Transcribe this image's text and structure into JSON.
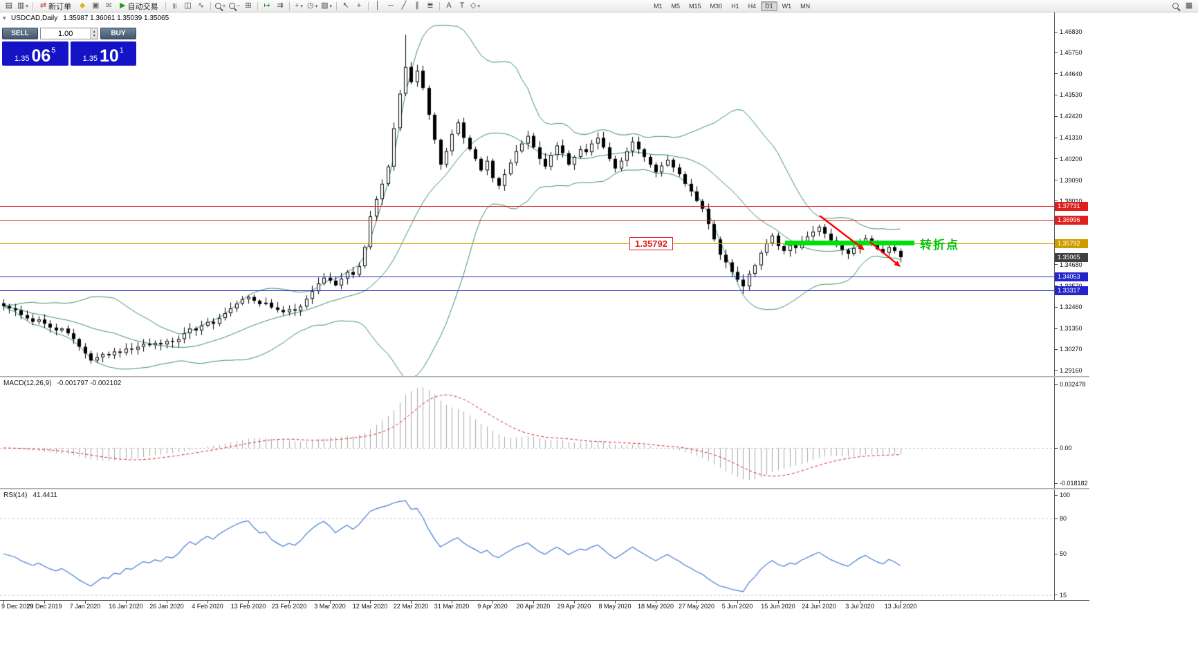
{
  "colors": {
    "band": "#35935a",
    "candle": "#000000",
    "candle_up_fill": "#ffffff",
    "macd_bar": "#a8a8a8",
    "macd_signal": "#e02020",
    "rsi_line": "#4379d8",
    "level_dash": "#c8c8c8",
    "annotation_red": "#ff0000",
    "green_bar": "#00e00e",
    "turning_point_green": "#00c40a",
    "callout_red": "#e01f1f"
  },
  "toolbar": {
    "items": [
      {
        "t": "icon",
        "name": "new-chart-icon",
        "glyph": "▤"
      },
      {
        "t": "icon",
        "name": "profiles-icon",
        "glyph": "▥",
        "dd": true
      },
      {
        "t": "sep"
      },
      {
        "t": "btn",
        "name": "new-order-button",
        "glyph": "⇄",
        "glyph_color": "#c23a3a",
        "label": "新订单"
      },
      {
        "t": "icon",
        "name": "metaeditor-icon",
        "glyph": "◆",
        "color": "#d9b427"
      },
      {
        "t": "icon",
        "name": "terminal-icon",
        "glyph": "▣",
        "color": "#666666"
      },
      {
        "t": "icon",
        "name": "mailbox-icon",
        "glyph": "✉",
        "color": "#777777"
      },
      {
        "t": "btn",
        "name": "autotrading-button",
        "glyph": "▶",
        "glyph_color": "#1fa11f",
        "label": "自动交易"
      },
      {
        "t": "sep"
      },
      {
        "t": "icon",
        "name": "bar-chart-icon",
        "glyph": "|||"
      },
      {
        "t": "icon",
        "name": "candlestick-chart-icon",
        "glyph": "◫"
      },
      {
        "t": "icon",
        "name": "line-chart-icon",
        "glyph": "∿"
      },
      {
        "t": "sep"
      },
      {
        "t": "mag",
        "name": "zoom-in-icon",
        "sign": "+"
      },
      {
        "t": "mag",
        "name": "zoom-out-icon",
        "sign": "−"
      },
      {
        "t": "icon",
        "name": "tile-windows-icon",
        "glyph": "⊞"
      },
      {
        "t": "sep"
      },
      {
        "t": "icon",
        "name": "auto-scroll-icon",
        "glyph": "↦",
        "color": "#2a8a2a"
      },
      {
        "t": "icon",
        "name": "chart-shift-icon",
        "glyph": "⇉"
      },
      {
        "t": "sep"
      },
      {
        "t": "icon",
        "name": "indicators-icon",
        "glyph": "+",
        "color": "#1a9a1a",
        "dd": true
      },
      {
        "t": "icon",
        "name": "periods-icon",
        "glyph": "◷",
        "dd": true
      },
      {
        "t": "icon",
        "name": "templates-icon",
        "glyph": "▨",
        "dd": true
      },
      {
        "t": "sep"
      },
      {
        "t": "icon",
        "name": "cursor-icon",
        "glyph": "↖"
      },
      {
        "t": "icon",
        "name": "crosshair-icon",
        "glyph": "+"
      },
      {
        "t": "sep"
      },
      {
        "t": "icon",
        "name": "vertical-line-icon",
        "glyph": "│"
      },
      {
        "t": "icon",
        "name": "horizontal-line-icon",
        "glyph": "─"
      },
      {
        "t": "icon",
        "name": "trendline-icon",
        "glyph": "╱"
      },
      {
        "t": "icon",
        "name": "equidistant-channel-icon",
        "glyph": "∥"
      },
      {
        "t": "icon",
        "name": "fibonacci-icon",
        "glyph": "≣"
      },
      {
        "t": "sep"
      },
      {
        "t": "icon",
        "name": "text-icon",
        "glyph": "A"
      },
      {
        "t": "icon",
        "name": "text-label-icon",
        "glyph": "T"
      },
      {
        "t": "icon",
        "name": "arrows-objects-icon",
        "glyph": "◇",
        "dd": true
      },
      {
        "t": "gap"
      }
    ],
    "timeframes": [
      "M1",
      "M5",
      "M15",
      "M30",
      "H1",
      "H4",
      "D1",
      "W1",
      "MN"
    ],
    "active_timeframe": "D1",
    "right_items": [
      {
        "t": "mag",
        "name": "search-icon",
        "sign": ""
      },
      {
        "t": "icon",
        "name": "data-window-icon",
        "glyph": "▦"
      }
    ]
  },
  "one_click": {
    "sell_label": "SELL",
    "buy_label": "BUY",
    "volume": "1.00",
    "sell_price": {
      "prefix": "1.35",
      "big": "06",
      "sup": "5"
    },
    "buy_price": {
      "prefix": "1.35",
      "big": "10",
      "sup": "1"
    }
  },
  "chart": {
    "title": "USDCAD,Daily",
    "ohlc": "1.35987 1.36061 1.35039 1.35065",
    "annotations": {
      "turning_point": "转折点",
      "callout": "1.35792"
    },
    "levels": [
      {
        "price": 1.37731,
        "color": "#e01f1f"
      },
      {
        "price": 1.36996,
        "color": "#e01f1f"
      },
      {
        "price": 1.35792,
        "color": "#d39e00"
      },
      {
        "price": 1.34053,
        "color": "#2424cc"
      },
      {
        "price": 1.33317,
        "color": "#2424cc"
      }
    ],
    "badges": [
      {
        "label": "1.37731",
        "bg": "#e01f1f"
      },
      {
        "label": "1.36996",
        "bg": "#e01f1f"
      },
      {
        "label": "1.35792",
        "bg": "#cf9c00"
      },
      {
        "label": "1.35065",
        "bg": "#404040"
      },
      {
        "label": "1.34053",
        "bg": "#2424cc"
      },
      {
        "label": "1.33317",
        "bg": "#2424cc"
      }
    ],
    "price_ticks": [
      "1.46830",
      "1.45750",
      "1.44640",
      "1.43530",
      "1.42420",
      "1.41310",
      "1.40200",
      "1.39090",
      "1.38010",
      "1.34680",
      "1.33570",
      "1.32460",
      "1.31350",
      "1.30270",
      "1.29160"
    ]
  },
  "macd": {
    "name": "MACD(12,26,9)",
    "values": "-0.001797 -0.002102",
    "ticks": [
      {
        "v": 0.032478,
        "label": "0.032478"
      },
      {
        "v": 0,
        "label": "0.00"
      },
      {
        "v": -0.018182,
        "label": "-0.018182"
      }
    ]
  },
  "rsi": {
    "name": "RSI(14)",
    "value": "41.4411",
    "ticks": [
      {
        "v": 100,
        "label": "100"
      },
      {
        "v": 80,
        "label": "80"
      },
      {
        "v": 50,
        "label": "50"
      },
      {
        "v": 15,
        "label": "15"
      }
    ],
    "levels": [
      80,
      15
    ]
  },
  "chart_data": {
    "type": "candlestick",
    "symbol": "USDCAD",
    "period": "Daily",
    "title": "USDCAD,Daily",
    "ohlc_display": {
      "open": 1.35987,
      "high": 1.36061,
      "low": 1.35039,
      "close": 1.35065
    },
    "ylim": [
      1.2916,
      1.4683
    ],
    "closes": [
      1.3252,
      1.324,
      1.323,
      1.3205,
      1.3188,
      1.317,
      1.3182,
      1.316,
      1.314,
      1.3125,
      1.3135,
      1.311,
      1.308,
      1.304,
      1.3005,
      1.2968,
      1.2985,
      1.3002,
      1.2995,
      1.3015,
      1.3008,
      1.303,
      1.3025,
      1.304,
      1.3055,
      1.3048,
      1.306,
      1.3052,
      1.307,
      1.3065,
      1.308,
      1.311,
      1.3135,
      1.3125,
      1.315,
      1.317,
      1.316,
      1.319,
      1.3215,
      1.324,
      1.3265,
      1.3288,
      1.33,
      1.328,
      1.3262,
      1.327,
      1.3245,
      1.3232,
      1.322,
      1.3235,
      1.3228,
      1.325,
      1.329,
      1.333,
      1.337,
      1.34,
      1.3385,
      1.336,
      1.3395,
      1.343,
      1.3415,
      1.346,
      1.356,
      1.372,
      1.381,
      1.389,
      1.398,
      1.418,
      1.436,
      1.45,
      1.442,
      1.448,
      1.439,
      1.425,
      1.412,
      1.399,
      1.406,
      1.415,
      1.421,
      1.413,
      1.407,
      1.402,
      1.396,
      1.401,
      1.392,
      1.388,
      1.394,
      1.4,
      1.406,
      1.41,
      1.414,
      1.408,
      1.402,
      1.398,
      1.404,
      1.409,
      1.405,
      1.399,
      1.403,
      1.407,
      1.4055,
      1.41,
      1.413,
      1.408,
      1.402,
      1.397,
      1.401,
      1.406,
      1.411,
      1.407,
      1.403,
      1.399,
      1.395,
      1.3985,
      1.4015,
      1.3975,
      1.394,
      1.389,
      1.385,
      1.38,
      1.376,
      1.368,
      1.36,
      1.352,
      1.348,
      1.343,
      1.339,
      1.3355,
      1.342,
      1.3465,
      1.353,
      1.358,
      1.362,
      1.3565,
      1.354,
      1.357,
      1.3555,
      1.359,
      1.3615,
      1.364,
      1.3665,
      1.363,
      1.3595,
      1.357,
      1.3545,
      1.3525,
      1.3555,
      1.3585,
      1.3605,
      1.3575,
      1.355,
      1.353,
      1.356,
      1.354,
      1.3507
    ],
    "wick_overrides": {
      "15": {
        "low": 1.2952
      },
      "69": {
        "high": 1.4668
      },
      "127": {
        "low": 1.3317
      }
    },
    "dates": [
      "9 Dec 2019",
      "29 Dec 2019",
      "7 Jan 2020",
      "16 Jan 2020",
      "26 Jan 2020",
      "4 Feb 2020",
      "13 Feb 2020",
      "23 Feb 2020",
      "3 Mar 2020",
      "12 Mar 2020",
      "22 Mar 2020",
      "31 Mar 2020",
      "9 Apr 2020",
      "20 Apr 2020",
      "29 Apr 2020",
      "8 May 2020",
      "18 May 2020",
      "27 May 2020",
      "5 Jun 2020",
      "15 Jun 2020",
      "24 Jun 2020",
      "3 Jul 2020",
      "13 Jul 2020"
    ],
    "indicators": [
      {
        "name": "Bollinger Bands",
        "period": 20,
        "deviation": 2
      },
      {
        "name": "MACD",
        "fast": 12,
        "slow": 26,
        "signal": 9,
        "display_values": [
          -0.001797,
          -0.002102
        ]
      },
      {
        "name": "RSI",
        "period": 14,
        "display_value": 41.4411
      }
    ],
    "bollinger": {
      "period": 20,
      "deviation": 2
    },
    "macd": {
      "fast": 12,
      "slow": 26,
      "signal": 9
    },
    "rsi": {
      "period": 14
    }
  }
}
